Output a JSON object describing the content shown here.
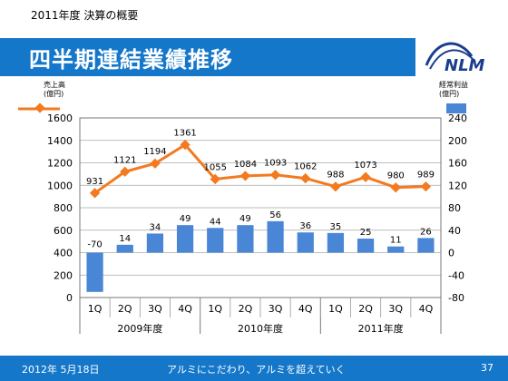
{
  "slide": {
    "subtitle": "2011年度 決算の概要",
    "title": "四半期連結業績推移",
    "logo_text": "NLM",
    "footer_date": "2012年 5月18日",
    "footer_slogan": "アルミにこだわり、アルミを超えていく",
    "page_number": "37"
  },
  "colors": {
    "brand_blue": "#1577c9",
    "bar_blue": "#4a86d6",
    "line_orange": "#f37a1f"
  },
  "chart_data": {
    "type": "bar+line",
    "categories": [
      "1Q",
      "2Q",
      "3Q",
      "4Q",
      "1Q",
      "2Q",
      "3Q",
      "4Q",
      "1Q",
      "2Q",
      "3Q",
      "4Q"
    ],
    "groups": [
      {
        "label": "2009年度",
        "count": 4
      },
      {
        "label": "2010年度",
        "count": 4
      },
      {
        "label": "2011年度",
        "count": 4
      }
    ],
    "series": [
      {
        "name": "売上高",
        "axis_label": "売上高\n(億円)",
        "type": "line",
        "axis": "left",
        "values": [
          931,
          1121,
          1194,
          1361,
          1055,
          1084,
          1093,
          1062,
          988,
          1073,
          980,
          989
        ]
      },
      {
        "name": "経常利益",
        "axis_label": "経常利益\n(億円)",
        "type": "bar",
        "axis": "right",
        "values": [
          -70,
          14,
          34,
          49,
          44,
          49,
          56,
          36,
          35,
          25,
          11,
          26
        ]
      }
    ],
    "left_axis": {
      "min": 0,
      "max": 1600,
      "ticks": [
        0,
        200,
        400,
        600,
        800,
        1000,
        1200,
        1400,
        1600
      ]
    },
    "right_axis": {
      "min": -80,
      "max": 240,
      "ticks": [
        -80,
        -40,
        0,
        40,
        80,
        120,
        160,
        200,
        240
      ]
    },
    "grid": true
  }
}
